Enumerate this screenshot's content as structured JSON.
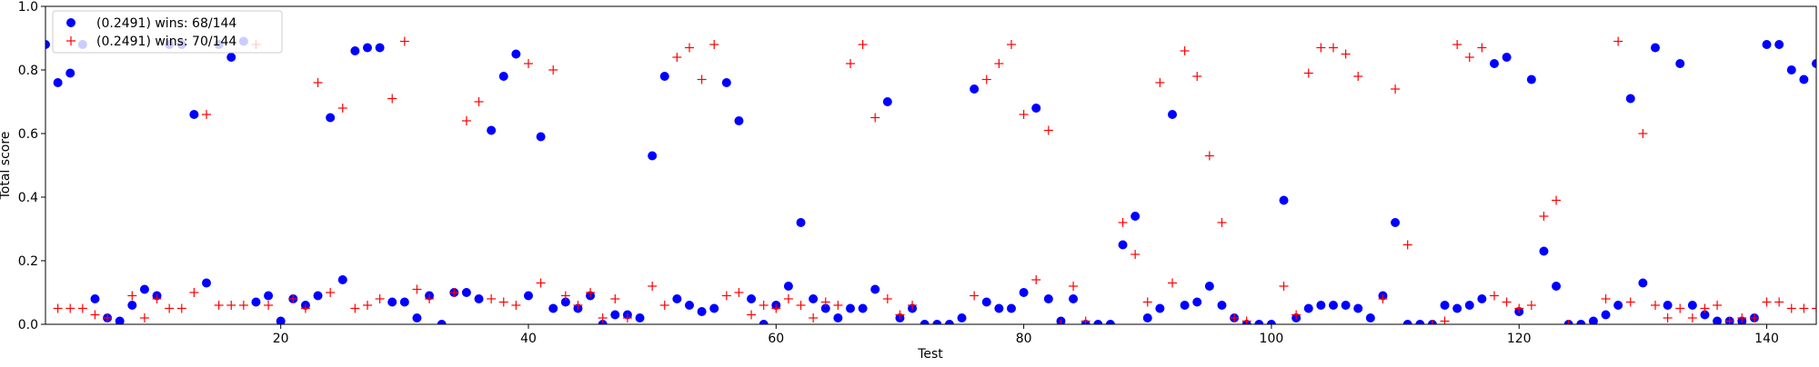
{
  "chart_data": {
    "type": "scatter",
    "title": "",
    "xlabel": "Test",
    "ylabel": "Total score",
    "xlim": [
      1,
      144
    ],
    "ylim": [
      0,
      1.0
    ],
    "x_ticks": [
      20,
      40,
      60,
      80,
      100,
      120,
      140
    ],
    "x_tick_labels": [
      "20",
      "40",
      "60",
      "80",
      "100",
      "120",
      "140"
    ],
    "y_ticks": [
      0.0,
      0.2,
      0.4,
      0.6,
      0.8,
      1.0
    ],
    "y_tick_labels": [
      "0.0",
      "0.2",
      "0.4",
      "0.6",
      "0.8",
      "1.0"
    ],
    "grid": false,
    "legend_position": "top-left",
    "series": [
      {
        "name": "(0.2491) wins: 68/144",
        "marker": "circle",
        "color": "#0000ff",
        "points": [
          [
            1,
            0.88
          ],
          [
            2,
            0.76
          ],
          [
            3,
            0.79
          ],
          [
            4,
            0.88
          ],
          [
            5,
            0.08
          ],
          [
            6,
            0.02
          ],
          [
            7,
            0.01
          ],
          [
            8,
            0.06
          ],
          [
            9,
            0.11
          ],
          [
            10,
            0.09
          ],
          [
            11,
            0.88
          ],
          [
            12,
            0.88
          ],
          [
            13,
            0.66
          ],
          [
            14,
            0.13
          ],
          [
            15,
            0.88
          ],
          [
            16,
            0.84
          ],
          [
            17,
            0.89
          ],
          [
            18,
            0.07
          ],
          [
            19,
            0.09
          ],
          [
            20,
            0.01
          ],
          [
            21,
            0.08
          ],
          [
            22,
            0.06
          ],
          [
            23,
            0.09
          ],
          [
            24,
            0.65
          ],
          [
            25,
            0.14
          ],
          [
            26,
            0.86
          ],
          [
            27,
            0.87
          ],
          [
            28,
            0.87
          ],
          [
            29,
            0.07
          ],
          [
            30,
            0.07
          ],
          [
            31,
            0.02
          ],
          [
            32,
            0.09
          ],
          [
            33,
            0.0
          ],
          [
            34,
            0.1
          ],
          [
            35,
            0.1
          ],
          [
            36,
            0.08
          ],
          [
            37,
            0.61
          ],
          [
            38,
            0.78
          ],
          [
            39,
            0.85
          ],
          [
            40,
            0.09
          ],
          [
            41,
            0.59
          ],
          [
            42,
            0.05
          ],
          [
            43,
            0.07
          ],
          [
            44,
            0.05
          ],
          [
            45,
            0.09
          ],
          [
            46,
            0.0
          ],
          [
            47,
            0.03
          ],
          [
            48,
            0.03
          ],
          [
            49,
            0.02
          ],
          [
            50,
            0.53
          ],
          [
            51,
            0.78
          ],
          [
            52,
            0.08
          ],
          [
            53,
            0.06
          ],
          [
            54,
            0.04
          ],
          [
            55,
            0.05
          ],
          [
            56,
            0.76
          ],
          [
            57,
            0.64
          ],
          [
            58,
            0.08
          ],
          [
            59,
            0.0
          ],
          [
            60,
            0.06
          ],
          [
            61,
            0.12
          ],
          [
            62,
            0.32
          ],
          [
            63,
            0.08
          ],
          [
            64,
            0.05
          ],
          [
            65,
            0.02
          ],
          [
            66,
            0.05
          ],
          [
            67,
            0.05
          ],
          [
            68,
            0.11
          ],
          [
            69,
            0.7
          ],
          [
            70,
            0.02
          ],
          [
            71,
            0.05
          ],
          [
            72,
            0.0
          ],
          [
            73,
            0.0
          ],
          [
            74,
            0.0
          ],
          [
            75,
            0.02
          ],
          [
            76,
            0.74
          ],
          [
            77,
            0.07
          ],
          [
            78,
            0.05
          ],
          [
            79,
            0.05
          ],
          [
            80,
            0.1
          ],
          [
            81,
            0.68
          ],
          [
            82,
            0.08
          ],
          [
            83,
            0.01
          ],
          [
            84,
            0.08
          ],
          [
            85,
            0.0
          ],
          [
            86,
            0.0
          ],
          [
            87,
            0.0
          ],
          [
            88,
            0.25
          ],
          [
            89,
            0.34
          ],
          [
            90,
            0.02
          ],
          [
            91,
            0.05
          ],
          [
            92,
            0.66
          ],
          [
            93,
            0.06
          ],
          [
            94,
            0.07
          ],
          [
            95,
            0.12
          ],
          [
            96,
            0.06
          ],
          [
            97,
            0.02
          ],
          [
            98,
            0.0
          ],
          [
            99,
            0.0
          ],
          [
            100,
            0.0
          ],
          [
            101,
            0.39
          ],
          [
            102,
            0.02
          ],
          [
            103,
            0.05
          ],
          [
            104,
            0.06
          ],
          [
            105,
            0.06
          ],
          [
            106,
            0.06
          ],
          [
            107,
            0.05
          ],
          [
            108,
            0.02
          ],
          [
            109,
            0.09
          ],
          [
            110,
            0.32
          ],
          [
            111,
            0.0
          ],
          [
            112,
            0.0
          ],
          [
            113,
            0.0
          ],
          [
            114,
            0.06
          ],
          [
            115,
            0.05
          ],
          [
            116,
            0.06
          ],
          [
            117,
            0.08
          ],
          [
            118,
            0.82
          ],
          [
            119,
            0.84
          ],
          [
            120,
            0.04
          ],
          [
            121,
            0.77
          ],
          [
            122,
            0.23
          ],
          [
            123,
            0.12
          ],
          [
            124,
            0.0
          ],
          [
            125,
            0.0
          ],
          [
            126,
            0.01
          ],
          [
            127,
            0.03
          ],
          [
            128,
            0.06
          ],
          [
            129,
            0.71
          ],
          [
            130,
            0.13
          ],
          [
            131,
            0.87
          ],
          [
            132,
            0.06
          ],
          [
            133,
            0.82
          ],
          [
            134,
            0.06
          ],
          [
            135,
            0.03
          ],
          [
            136,
            0.01
          ],
          [
            137,
            0.01
          ],
          [
            138,
            0.01
          ],
          [
            139,
            0.02
          ],
          [
            140,
            0.88
          ],
          [
            141,
            0.88
          ],
          [
            142,
            0.8
          ],
          [
            143,
            0.77
          ],
          [
            144,
            0.82
          ]
        ]
      },
      {
        "name": "(0.2491) wins: 70/144",
        "marker": "plus",
        "color": "#ff0000",
        "points": [
          [
            2,
            0.05
          ],
          [
            3,
            0.05
          ],
          [
            4,
            0.05
          ],
          [
            5,
            0.03
          ],
          [
            6,
            0.02
          ],
          [
            8,
            0.09
          ],
          [
            9,
            0.02
          ],
          [
            10,
            0.08
          ],
          [
            11,
            0.05
          ],
          [
            12,
            0.05
          ],
          [
            13,
            0.1
          ],
          [
            14,
            0.66
          ],
          [
            15,
            0.06
          ],
          [
            16,
            0.06
          ],
          [
            17,
            0.06
          ],
          [
            18,
            0.88
          ],
          [
            19,
            0.06
          ],
          [
            21,
            0.08
          ],
          [
            22,
            0.05
          ],
          [
            23,
            0.76
          ],
          [
            24,
            0.1
          ],
          [
            25,
            0.68
          ],
          [
            26,
            0.05
          ],
          [
            27,
            0.06
          ],
          [
            28,
            0.08
          ],
          [
            29,
            0.71
          ],
          [
            30,
            0.89
          ],
          [
            31,
            0.11
          ],
          [
            32,
            0.08
          ],
          [
            34,
            0.1
          ],
          [
            35,
            0.64
          ],
          [
            36,
            0.7
          ],
          [
            37,
            0.08
          ],
          [
            38,
            0.07
          ],
          [
            39,
            0.06
          ],
          [
            40,
            0.82
          ],
          [
            41,
            0.13
          ],
          [
            42,
            0.8
          ],
          [
            43,
            0.09
          ],
          [
            44,
            0.06
          ],
          [
            45,
            0.1
          ],
          [
            46,
            0.02
          ],
          [
            47,
            0.08
          ],
          [
            48,
            0.02
          ],
          [
            50,
            0.12
          ],
          [
            51,
            0.06
          ],
          [
            52,
            0.84
          ],
          [
            53,
            0.87
          ],
          [
            54,
            0.77
          ],
          [
            55,
            0.88
          ],
          [
            56,
            0.09
          ],
          [
            57,
            0.1
          ],
          [
            58,
            0.03
          ],
          [
            59,
            0.06
          ],
          [
            60,
            0.05
          ],
          [
            61,
            0.08
          ],
          [
            62,
            0.06
          ],
          [
            63,
            0.02
          ],
          [
            64,
            0.07
          ],
          [
            65,
            0.06
          ],
          [
            66,
            0.82
          ],
          [
            67,
            0.88
          ],
          [
            68,
            0.65
          ],
          [
            69,
            0.08
          ],
          [
            70,
            0.03
          ],
          [
            71,
            0.06
          ],
          [
            76,
            0.09
          ],
          [
            77,
            0.77
          ],
          [
            78,
            0.82
          ],
          [
            79,
            0.88
          ],
          [
            80,
            0.66
          ],
          [
            81,
            0.14
          ],
          [
            82,
            0.61
          ],
          [
            83,
            0.0
          ],
          [
            84,
            0.12
          ],
          [
            85,
            0.01
          ],
          [
            88,
            0.32
          ],
          [
            89,
            0.22
          ],
          [
            90,
            0.07
          ],
          [
            91,
            0.76
          ],
          [
            92,
            0.13
          ],
          [
            93,
            0.86
          ],
          [
            94,
            0.78
          ],
          [
            95,
            0.53
          ],
          [
            96,
            0.32
          ],
          [
            97,
            0.02
          ],
          [
            98,
            0.01
          ],
          [
            101,
            0.12
          ],
          [
            102,
            0.03
          ],
          [
            103,
            0.79
          ],
          [
            104,
            0.87
          ],
          [
            105,
            0.87
          ],
          [
            106,
            0.85
          ],
          [
            107,
            0.78
          ],
          [
            109,
            0.08
          ],
          [
            110,
            0.74
          ],
          [
            111,
            0.25
          ],
          [
            113,
            0.0
          ],
          [
            114,
            0.01
          ],
          [
            115,
            0.88
          ],
          [
            116,
            0.84
          ],
          [
            117,
            0.87
          ],
          [
            118,
            0.09
          ],
          [
            119,
            0.07
          ],
          [
            120,
            0.05
          ],
          [
            121,
            0.06
          ],
          [
            122,
            0.34
          ],
          [
            123,
            0.39
          ],
          [
            124,
            0.0
          ],
          [
            127,
            0.08
          ],
          [
            128,
            0.89
          ],
          [
            129,
            0.07
          ],
          [
            130,
            0.6
          ],
          [
            131,
            0.06
          ],
          [
            132,
            0.02
          ],
          [
            133,
            0.05
          ],
          [
            134,
            0.02
          ],
          [
            135,
            0.05
          ],
          [
            136,
            0.06
          ],
          [
            137,
            0.01
          ],
          [
            138,
            0.02
          ],
          [
            139,
            0.02
          ],
          [
            140,
            0.07
          ],
          [
            141,
            0.07
          ],
          [
            142,
            0.05
          ],
          [
            143,
            0.05
          ],
          [
            144,
            0.05
          ]
        ]
      }
    ]
  }
}
